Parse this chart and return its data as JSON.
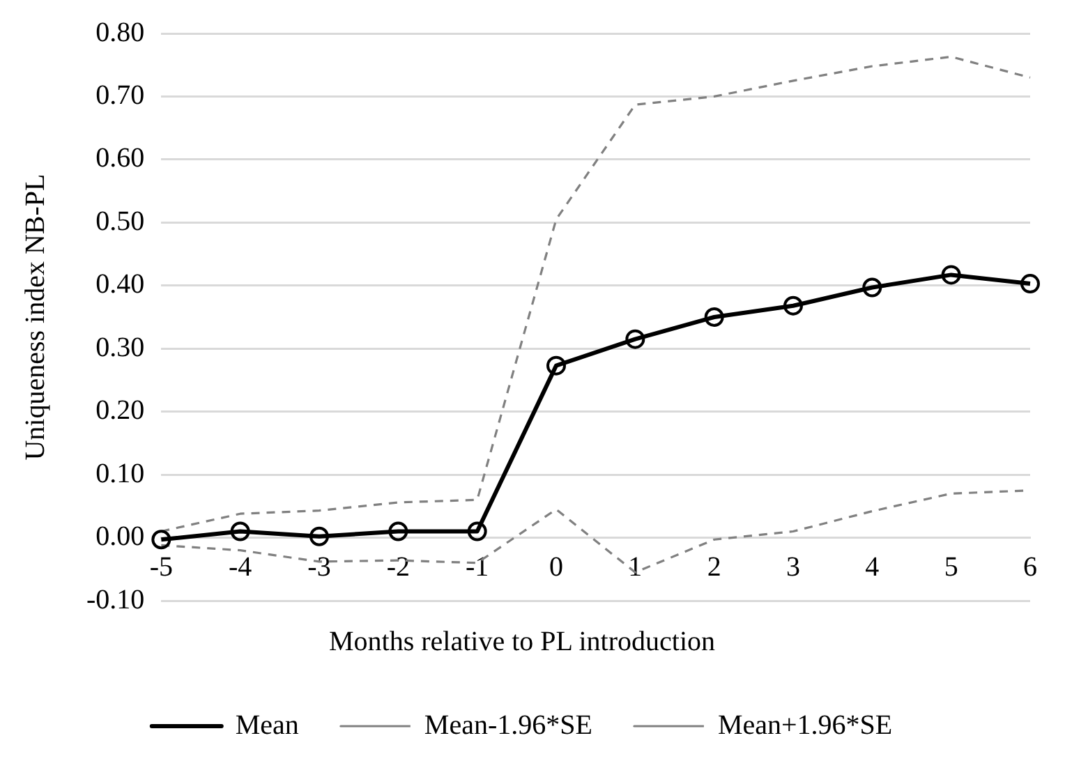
{
  "chart_data": {
    "type": "line",
    "xlabel": "Months relative to PL introduction",
    "ylabel": "Uniqueness index NB-PL",
    "categories": [
      "-5",
      "-4",
      "-3",
      "-2",
      "-1",
      "0",
      "1",
      "2",
      "3",
      "4",
      "5",
      "6"
    ],
    "series": [
      {
        "name": "Mean",
        "color": "#000000",
        "marker": "circle",
        "line_style": "solid",
        "values": [
          -0.003,
          0.01,
          0.002,
          0.01,
          0.01,
          0.273,
          0.315,
          0.35,
          0.368,
          0.397,
          0.417,
          0.403
        ]
      },
      {
        "name": "Mean-1.96*SE",
        "color": "#808080",
        "marker": "none",
        "line_style": "dashed",
        "values": [
          -0.012,
          -0.02,
          -0.038,
          -0.036,
          -0.04,
          0.045,
          -0.055,
          -0.003,
          0.01,
          0.042,
          0.07,
          0.075
        ]
      },
      {
        "name": "Mean+1.96*SE",
        "color": "#808080",
        "marker": "none",
        "line_style": "dashed",
        "values": [
          0.01,
          0.038,
          0.043,
          0.056,
          0.06,
          0.505,
          0.687,
          0.7,
          0.725,
          0.748,
          0.763,
          0.73
        ]
      }
    ],
    "ylim": [
      -0.1,
      0.8
    ],
    "yticks": [
      {
        "value": -0.1,
        "label": "-0.10"
      },
      {
        "value": 0,
        "label": "0.00"
      },
      {
        "value": 0.1,
        "label": "0.10"
      },
      {
        "value": 0.2,
        "label": "0.20"
      },
      {
        "value": 0.3,
        "label": "0.30"
      },
      {
        "value": 0.4,
        "label": "0.40"
      },
      {
        "value": 0.5,
        "label": "0.50"
      },
      {
        "value": 0.6,
        "label": "0.60"
      },
      {
        "value": 0.7,
        "label": "0.70"
      },
      {
        "value": 0.8,
        "label": "0.80"
      }
    ],
    "grid": "y",
    "legend": "bottom"
  }
}
